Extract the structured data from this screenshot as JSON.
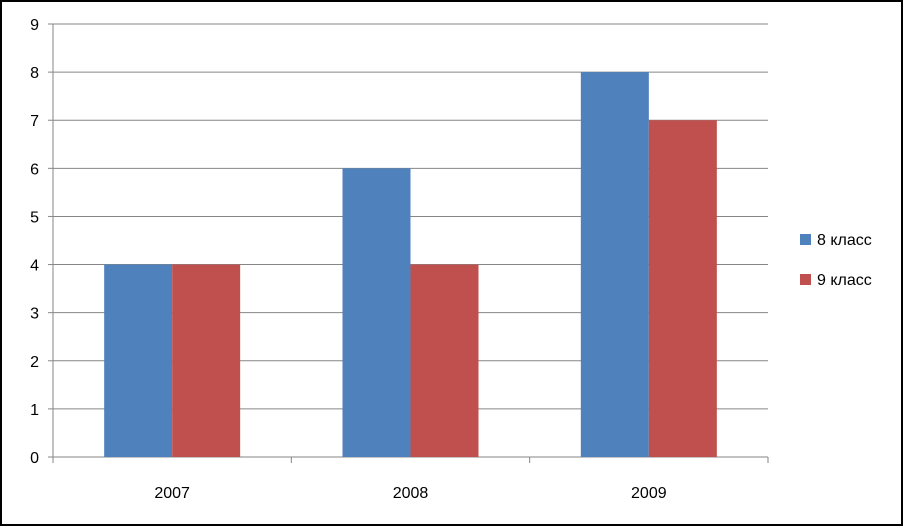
{
  "chart_data": {
    "type": "bar",
    "categories": [
      "2007",
      "2008",
      "2009"
    ],
    "series": [
      {
        "name": "8 класс",
        "values": [
          4,
          6,
          8
        ],
        "color": "#4F81BD"
      },
      {
        "name": "9 класс",
        "values": [
          4,
          4,
          7
        ],
        "color": "#C0504D"
      }
    ],
    "ylim": [
      0,
      9
    ],
    "yticks": [
      "0",
      "1",
      "2",
      "3",
      "4",
      "5",
      "6",
      "7",
      "8",
      "9"
    ],
    "grid": true,
    "legend_position": "right",
    "title": "",
    "xlabel": "",
    "ylabel": ""
  }
}
